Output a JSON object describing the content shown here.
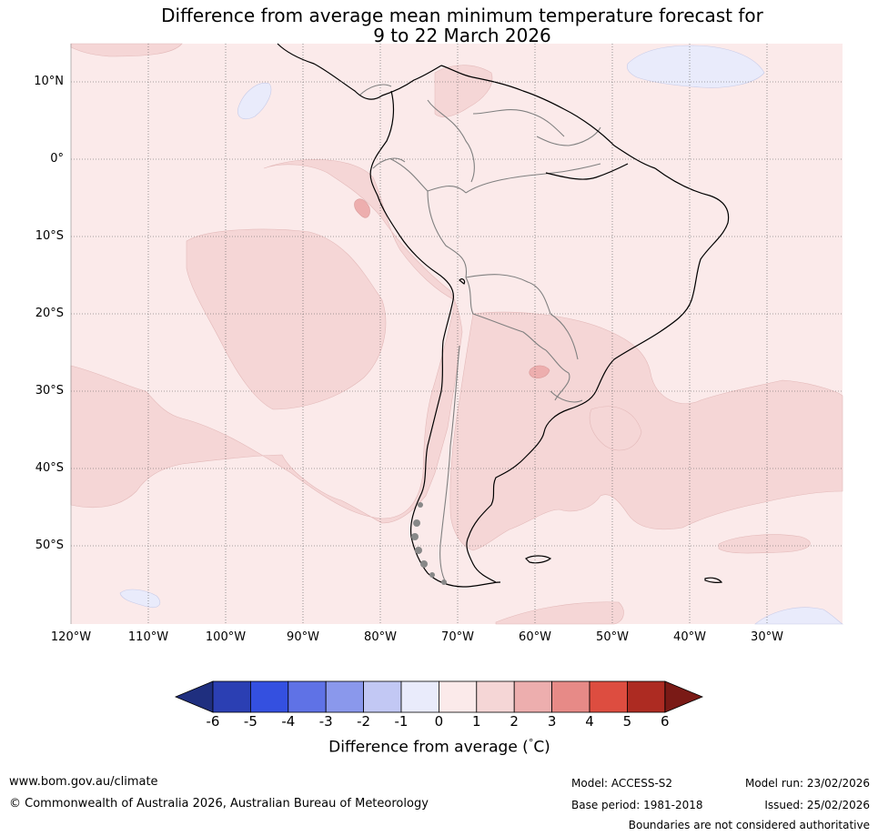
{
  "title_line1": "Difference from average mean minimum temperature forecast for",
  "title_line2": "9 to 22 March 2026",
  "lat_labels": [
    "10°N",
    "0°",
    "10°S",
    "20°S",
    "30°S",
    "40°S",
    "50°S"
  ],
  "lon_labels": [
    "120°W",
    "110°W",
    "100°W",
    "90°W",
    "80°W",
    "70°W",
    "60°W",
    "50°W",
    "40°W",
    "30°W"
  ],
  "colorbar": {
    "ticks": [
      "-6",
      "-5",
      "-4",
      "-3",
      "-2",
      "-1",
      "0",
      "1",
      "2",
      "3",
      "4",
      "5",
      "6"
    ],
    "label": "Difference from average (°C)",
    "label_prefix": "Difference from average (",
    "label_degree": "°",
    "label_suffix": "C)",
    "colors": [
      "#1f2f7f",
      "#2b3fb3",
      "#3450e0",
      "#5f72e6",
      "#8a98ec",
      "#c2c8f4",
      "#e9ebfb",
      "#fbeaea",
      "#f5d6d6",
      "#edaeae",
      "#e78a87",
      "#dd4d40",
      "#ad2b22",
      "#7a1a16"
    ]
  },
  "map_colors": {
    "band_0_1": "#fbeaea",
    "band_1_2": "#f5d6d6",
    "band_2_3": "#edaeae",
    "band_neg1_0": "#e9ebfb",
    "coast": "#000000",
    "border": "#808080"
  },
  "footer": {
    "url": "www.bom.gov.au/climate",
    "copyright": "© Commonwealth of Australia 2026, Australian Bureau of Meteorology",
    "model": "Model: ACCESS-S2",
    "model_run": "Model run: 23/02/2026",
    "base_period": "Base period: 1981-2018",
    "issued": "Issued: 25/02/2026",
    "disclaimer": "Boundaries are not considered authoritative"
  }
}
